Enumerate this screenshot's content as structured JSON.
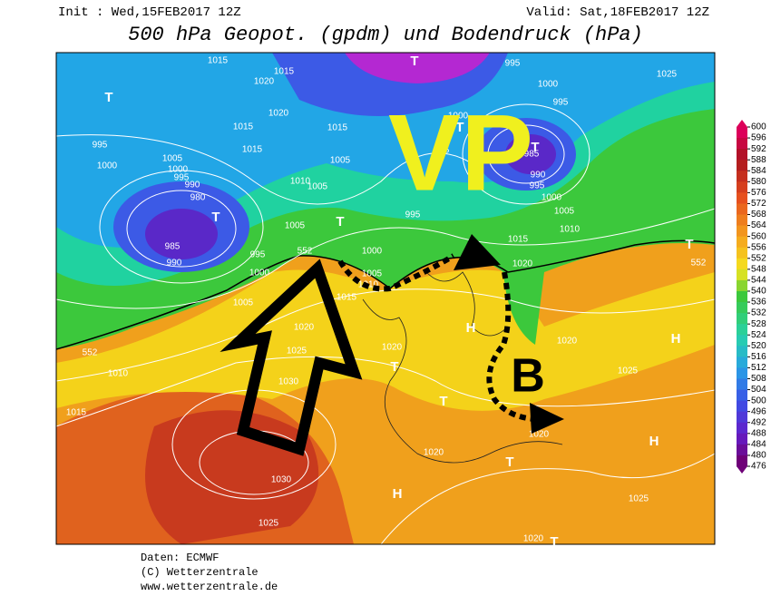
{
  "header": {
    "init": "Init : Wed,15FEB2017 12Z",
    "valid": "Valid: Sat,18FEB2017 12Z",
    "title": "500 hPa Geopot. (gpdm) und Bodendruck (hPa)"
  },
  "map": {
    "annotations": [
      "VP",
      "B"
    ],
    "pressure_labels": [
      1015,
      1015,
      1020,
      1020,
      1015,
      1015,
      995,
      1000,
      1005,
      1000,
      995,
      990,
      980,
      985,
      990,
      995,
      1000,
      1005,
      1010,
      1005,
      1005,
      1015,
      1005,
      1000,
      995,
      985,
      990,
      995,
      1000,
      1005,
      1010,
      995,
      1000,
      1005,
      1010,
      1015,
      1015,
      1020,
      1020,
      1025,
      1030,
      1010,
      1015,
      1020,
      1020,
      1030,
      1025,
      1020,
      1025,
      1020,
      1025,
      1000,
      995,
      995,
      1025,
      1020
    ],
    "contour_labels": [
      552,
      552,
      552
    ],
    "centers": [
      "T",
      "T",
      "T",
      "T",
      "T",
      "T",
      "T",
      "T",
      "T",
      "H",
      "H",
      "H",
      "H",
      "T",
      "T"
    ]
  },
  "colorbar": {
    "labels": [
      600,
      596,
      592,
      588,
      584,
      580,
      576,
      572,
      568,
      564,
      560,
      556,
      552,
      548,
      544,
      540,
      536,
      532,
      528,
      524,
      520,
      516,
      512,
      508,
      504,
      500,
      496,
      492,
      488,
      484,
      480,
      476
    ]
  },
  "footer": {
    "source": "Daten: ECMWF",
    "copyright": "(C) Wetterzentrale",
    "url": "www.wetterzentrale.de"
  }
}
